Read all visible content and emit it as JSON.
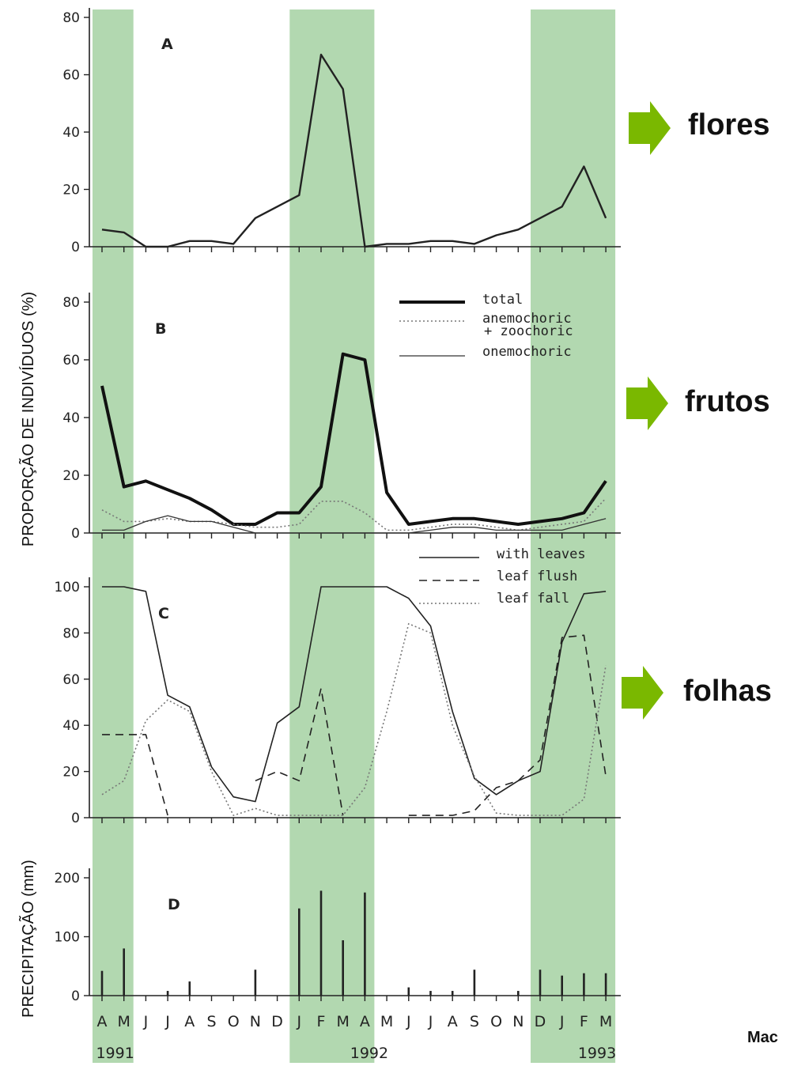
{
  "months": [
    "A",
    "M",
    "J",
    "J",
    "A",
    "S",
    "O",
    "N",
    "D",
    "J",
    "F",
    "M",
    "A",
    "M",
    "J",
    "J",
    "A",
    "S",
    "O",
    "N",
    "D",
    "J",
    "F",
    "M"
  ],
  "years": [
    "1991",
    "1992",
    "1993"
  ],
  "ylabel_top": "PROPORÇÃO DE INDIVÍDUOS (%)",
  "ylabel_bottom": "PRECIPITAÇÃO (mm)",
  "side_labels": {
    "flores": "flores",
    "frutos": "frutos",
    "folhas": "folhas"
  },
  "credit": "Mac",
  "wet_season_color": "#b2d8b0",
  "arrow_color": "#7ab800",
  "chart_data": [
    {
      "type": "line",
      "panel": "A",
      "ylim": [
        0,
        80
      ],
      "yticks": [
        "0",
        "20",
        "40",
        "60",
        "80"
      ],
      "series": [
        {
          "values": [
            6,
            5,
            0,
            0,
            2,
            2,
            1,
            10,
            14,
            18,
            67,
            55,
            0,
            1,
            1,
            2,
            2,
            1,
            4,
            6,
            10,
            14,
            28,
            10
          ]
        }
      ]
    },
    {
      "type": "line",
      "panel": "B",
      "ylim": [
        0,
        80
      ],
      "yticks": [
        "0",
        "20",
        "40",
        "60",
        "80"
      ],
      "legend": [
        "total",
        "anemochoric",
        "+ zoochoric",
        "onemochoric"
      ],
      "series": [
        {
          "name": "total",
          "values": [
            51,
            16,
            18,
            15,
            12,
            8,
            3,
            3,
            7,
            7,
            16,
            62,
            60,
            14,
            3,
            4,
            5,
            5,
            4,
            3,
            4,
            5,
            7,
            18
          ]
        },
        {
          "name": "anemochoric + zoochoric",
          "values": [
            8,
            4,
            4,
            5,
            4,
            4,
            3,
            2,
            2,
            3,
            11,
            11,
            7,
            1,
            1,
            2,
            3,
            3,
            2,
            1,
            2,
            3,
            4,
            12
          ]
        },
        {
          "name": "onemochoric",
          "values": [
            1,
            1,
            4,
            6,
            4,
            4,
            2,
            0,
            0,
            0,
            0,
            0,
            0,
            0,
            0,
            1,
            2,
            2,
            1,
            1,
            1,
            1,
            3,
            5
          ]
        }
      ]
    },
    {
      "type": "line",
      "panel": "C",
      "ylim": [
        0,
        100
      ],
      "yticks": [
        "0",
        "20",
        "40",
        "60",
        "80",
        "100"
      ],
      "legend": [
        "with leaves",
        "leaf flush",
        "leaf fall"
      ],
      "series": [
        {
          "name": "with leaves",
          "values": [
            100,
            100,
            98,
            53,
            48,
            22,
            9,
            7,
            41,
            48,
            100,
            100,
            100,
            100,
            95,
            83,
            46,
            17,
            10,
            16,
            20,
            76,
            97,
            98
          ]
        },
        {
          "name": "leaf flush",
          "values": [
            36,
            36,
            36,
            1,
            null,
            null,
            null,
            16,
            20,
            16,
            56,
            1,
            null,
            null,
            1,
            1,
            1,
            3,
            13,
            16,
            25,
            78,
            79,
            18
          ]
        },
        {
          "name": "leaf fall",
          "values": [
            10,
            16,
            42,
            51,
            46,
            20,
            1,
            4,
            1,
            1,
            1,
            1,
            13,
            46,
            84,
            80,
            40,
            18,
            2,
            1,
            1,
            1,
            8,
            66
          ]
        }
      ]
    },
    {
      "type": "bar",
      "panel": "D",
      "ylim": [
        0,
        200
      ],
      "yticks": [
        "0",
        "100",
        "200"
      ],
      "series": [
        {
          "values": [
            42,
            80,
            0,
            8,
            24,
            0,
            0,
            44,
            0,
            148,
            178,
            94,
            175,
            0,
            14,
            8,
            8,
            44,
            0,
            8,
            44,
            34,
            38,
            38
          ]
        }
      ]
    }
  ]
}
